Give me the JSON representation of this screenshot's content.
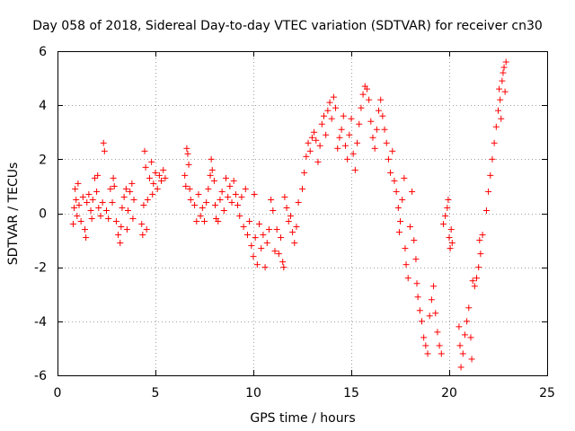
{
  "chart_data": {
    "type": "scatter",
    "title": "Day 058 of 2018, Sidereal Day-to-day VTEC variation (SDTVAR) for receiver cn30",
    "xlabel": "GPS time / hours",
    "ylabel": "SDTVAR / TECUs",
    "xlim": [
      0,
      25
    ],
    "ylim": [
      -6,
      6
    ],
    "x_ticks": [
      "0",
      "5",
      "10",
      "15",
      "20",
      "25"
    ],
    "y_ticks": [
      "-6",
      "-4",
      "-2",
      "0",
      "2",
      "4",
      "6"
    ],
    "grid": true,
    "marker": "plus",
    "series_color": "#ff0000",
    "series": [
      {
        "name": "SDTVAR",
        "points": [
          [
            0.8,
            -0.4
          ],
          [
            0.85,
            0.2
          ],
          [
            0.9,
            0.9
          ],
          [
            0.95,
            0.5
          ],
          [
            1.0,
            -0.1
          ],
          [
            1.05,
            1.1
          ],
          [
            1.1,
            0.3
          ],
          [
            1.2,
            -0.3
          ],
          [
            1.3,
            0.6
          ],
          [
            1.4,
            -0.6
          ],
          [
            1.45,
            -0.9
          ],
          [
            1.5,
            0.4
          ],
          [
            1.6,
            0.7
          ],
          [
            1.7,
            0.1
          ],
          [
            1.75,
            -0.2
          ],
          [
            1.8,
            0.5
          ],
          [
            1.9,
            1.3
          ],
          [
            2.0,
            0.8
          ],
          [
            2.05,
            1.4
          ],
          [
            2.1,
            0.2
          ],
          [
            2.2,
            -0.1
          ],
          [
            2.3,
            0.4
          ],
          [
            2.35,
            2.6
          ],
          [
            2.4,
            2.3
          ],
          [
            2.5,
            0.1
          ],
          [
            2.6,
            -0.2
          ],
          [
            2.7,
            0.9
          ],
          [
            2.8,
            0.4
          ],
          [
            2.85,
            1.3
          ],
          [
            2.9,
            1.0
          ],
          [
            3.0,
            -0.3
          ],
          [
            3.1,
            -0.8
          ],
          [
            3.2,
            -1.1
          ],
          [
            3.25,
            -0.5
          ],
          [
            3.3,
            0.2
          ],
          [
            3.4,
            0.6
          ],
          [
            3.5,
            0.9
          ],
          [
            3.55,
            -0.6
          ],
          [
            3.6,
            0.1
          ],
          [
            3.7,
            0.8
          ],
          [
            3.8,
            1.1
          ],
          [
            3.85,
            -0.2
          ],
          [
            3.9,
            0.5
          ],
          [
            4.3,
            -0.4
          ],
          [
            4.35,
            -0.8
          ],
          [
            4.4,
            0.3
          ],
          [
            4.45,
            2.3
          ],
          [
            4.5,
            1.7
          ],
          [
            4.55,
            -0.6
          ],
          [
            4.6,
            0.5
          ],
          [
            4.7,
            1.3
          ],
          [
            4.8,
            1.9
          ],
          [
            4.85,
            0.7
          ],
          [
            4.9,
            1.1
          ],
          [
            5.0,
            1.5
          ],
          [
            5.1,
            0.9
          ],
          [
            5.2,
            1.4
          ],
          [
            5.3,
            1.2
          ],
          [
            5.4,
            1.6
          ],
          [
            5.5,
            1.3
          ],
          [
            6.5,
            1.4
          ],
          [
            6.55,
            1.0
          ],
          [
            6.6,
            2.4
          ],
          [
            6.65,
            2.2
          ],
          [
            6.7,
            1.8
          ],
          [
            6.75,
            0.9
          ],
          [
            6.8,
            0.5
          ],
          [
            7.0,
            0.3
          ],
          [
            7.1,
            -0.3
          ],
          [
            7.2,
            0.7
          ],
          [
            7.3,
            -0.1
          ],
          [
            7.4,
            0.2
          ],
          [
            7.5,
            -0.3
          ],
          [
            7.6,
            0.4
          ],
          [
            7.7,
            0.9
          ],
          [
            7.8,
            1.4
          ],
          [
            7.85,
            2.0
          ],
          [
            7.9,
            1.6
          ],
          [
            8.0,
            1.2
          ],
          [
            8.05,
            0.3
          ],
          [
            8.1,
            -0.2
          ],
          [
            8.2,
            -0.3
          ],
          [
            8.3,
            0.5
          ],
          [
            8.4,
            0.8
          ],
          [
            8.5,
            0.1
          ],
          [
            8.6,
            1.3
          ],
          [
            8.7,
            0.6
          ],
          [
            8.8,
            1.0
          ],
          [
            8.9,
            0.4
          ],
          [
            9.0,
            1.2
          ],
          [
            9.1,
            0.7
          ],
          [
            9.2,
            0.3
          ],
          [
            9.3,
            -0.1
          ],
          [
            9.4,
            0.6
          ],
          [
            9.5,
            -0.5
          ],
          [
            9.6,
            0.9
          ],
          [
            9.7,
            -0.8
          ],
          [
            9.8,
            -0.3
          ],
          [
            9.9,
            -1.2
          ],
          [
            10.0,
            -1.6
          ],
          [
            10.05,
            0.7
          ],
          [
            10.1,
            -0.9
          ],
          [
            10.2,
            -1.9
          ],
          [
            10.3,
            -0.4
          ],
          [
            10.4,
            -1.3
          ],
          [
            10.5,
            -0.8
          ],
          [
            10.6,
            -2.0
          ],
          [
            10.7,
            -1.1
          ],
          [
            10.8,
            -0.6
          ],
          [
            10.9,
            0.5
          ],
          [
            11.0,
            0.1
          ],
          [
            11.1,
            -1.4
          ],
          [
            11.2,
            -0.6
          ],
          [
            11.3,
            -1.5
          ],
          [
            11.4,
            -0.9
          ],
          [
            11.5,
            -1.8
          ],
          [
            11.55,
            -2.0
          ],
          [
            11.6,
            0.6
          ],
          [
            11.7,
            0.2
          ],
          [
            11.8,
            -0.3
          ],
          [
            11.9,
            -0.1
          ],
          [
            12.0,
            -0.7
          ],
          [
            12.1,
            -1.1
          ],
          [
            12.2,
            -0.5
          ],
          [
            12.3,
            0.4
          ],
          [
            12.5,
            0.9
          ],
          [
            12.6,
            1.5
          ],
          [
            12.7,
            2.1
          ],
          [
            12.8,
            2.6
          ],
          [
            12.9,
            2.3
          ],
          [
            13.0,
            2.8
          ],
          [
            13.1,
            3.0
          ],
          [
            13.2,
            2.7
          ],
          [
            13.3,
            1.9
          ],
          [
            13.4,
            2.5
          ],
          [
            13.5,
            3.3
          ],
          [
            13.6,
            3.6
          ],
          [
            13.7,
            2.9
          ],
          [
            13.8,
            3.8
          ],
          [
            13.9,
            4.1
          ],
          [
            14.0,
            3.5
          ],
          [
            14.1,
            4.3
          ],
          [
            14.2,
            3.9
          ],
          [
            14.3,
            2.4
          ],
          [
            14.4,
            2.8
          ],
          [
            14.5,
            3.1
          ],
          [
            14.6,
            3.6
          ],
          [
            14.7,
            2.5
          ],
          [
            14.8,
            2.0
          ],
          [
            14.9,
            2.9
          ],
          [
            15.0,
            3.5
          ],
          [
            15.1,
            2.2
          ],
          [
            15.2,
            1.6
          ],
          [
            15.3,
            2.6
          ],
          [
            15.4,
            3.3
          ],
          [
            15.5,
            3.9
          ],
          [
            15.6,
            4.4
          ],
          [
            15.7,
            4.7
          ],
          [
            15.8,
            4.6
          ],
          [
            15.9,
            4.2
          ],
          [
            16.0,
            3.4
          ],
          [
            16.1,
            2.8
          ],
          [
            16.2,
            2.4
          ],
          [
            16.3,
            3.1
          ],
          [
            16.4,
            3.8
          ],
          [
            16.5,
            4.2
          ],
          [
            16.6,
            3.6
          ],
          [
            16.7,
            3.1
          ],
          [
            16.8,
            2.6
          ],
          [
            16.9,
            2.0
          ],
          [
            17.0,
            1.5
          ],
          [
            17.1,
            2.3
          ],
          [
            17.2,
            1.2
          ],
          [
            17.3,
            0.8
          ],
          [
            17.4,
            0.2
          ],
          [
            17.45,
            -0.7
          ],
          [
            17.5,
            -0.3
          ],
          [
            17.6,
            0.5
          ],
          [
            17.7,
            1.3
          ],
          [
            17.75,
            -1.3
          ],
          [
            17.8,
            -1.9
          ],
          [
            17.9,
            -2.4
          ],
          [
            18.0,
            -0.5
          ],
          [
            18.1,
            0.8
          ],
          [
            18.2,
            -1.0
          ],
          [
            18.3,
            -1.7
          ],
          [
            18.35,
            -2.6
          ],
          [
            18.4,
            -3.1
          ],
          [
            18.5,
            -3.6
          ],
          [
            18.6,
            -4.0
          ],
          [
            18.7,
            -4.6
          ],
          [
            18.8,
            -4.9
          ],
          [
            18.9,
            -5.2
          ],
          [
            19.0,
            -3.8
          ],
          [
            19.1,
            -3.2
          ],
          [
            19.2,
            -2.7
          ],
          [
            19.3,
            -3.7
          ],
          [
            19.4,
            -4.4
          ],
          [
            19.5,
            -4.9
          ],
          [
            19.6,
            -5.2
          ],
          [
            19.7,
            -0.4
          ],
          [
            19.8,
            -0.1
          ],
          [
            19.9,
            0.2
          ],
          [
            19.95,
            0.5
          ],
          [
            20.0,
            -0.9
          ],
          [
            20.05,
            -1.3
          ],
          [
            20.1,
            -0.6
          ],
          [
            20.15,
            -1.1
          ],
          [
            20.5,
            -4.2
          ],
          [
            20.55,
            -4.9
          ],
          [
            20.6,
            -5.7
          ],
          [
            20.7,
            -5.2
          ],
          [
            20.8,
            -4.5
          ],
          [
            20.9,
            -4.0
          ],
          [
            21.0,
            -3.5
          ],
          [
            21.1,
            -4.6
          ],
          [
            21.15,
            -5.4
          ],
          [
            21.2,
            -2.5
          ],
          [
            21.3,
            -2.7
          ],
          [
            21.4,
            -2.4
          ],
          [
            21.5,
            -2.0
          ],
          [
            21.55,
            -1.0
          ],
          [
            21.6,
            -1.5
          ],
          [
            21.7,
            -0.8
          ],
          [
            21.9,
            0.1
          ],
          [
            22.0,
            0.8
          ],
          [
            22.1,
            1.4
          ],
          [
            22.2,
            2.0
          ],
          [
            22.3,
            2.6
          ],
          [
            22.4,
            3.2
          ],
          [
            22.5,
            3.8
          ],
          [
            22.55,
            4.6
          ],
          [
            22.6,
            4.2
          ],
          [
            22.65,
            3.5
          ],
          [
            22.7,
            4.9
          ],
          [
            22.75,
            5.2
          ],
          [
            22.8,
            5.4
          ],
          [
            22.85,
            4.5
          ],
          [
            22.9,
            5.6
          ]
        ]
      }
    ]
  }
}
